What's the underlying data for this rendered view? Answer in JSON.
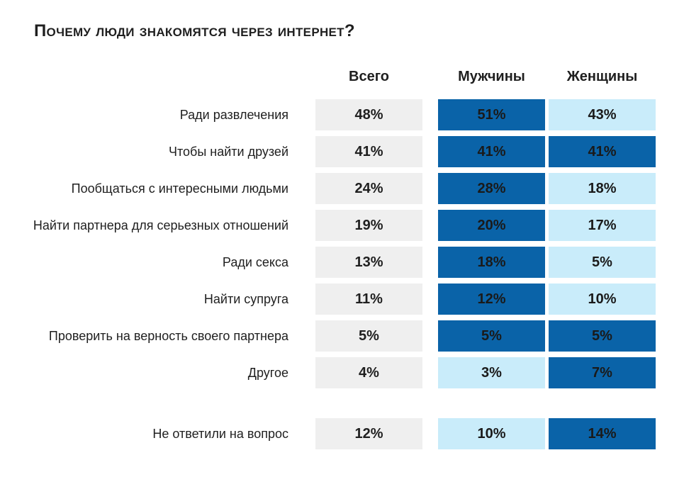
{
  "colors": {
    "total": "#efefef",
    "high": "#0a63a8",
    "low": "#c9ecfa"
  },
  "chart_data": {
    "type": "table",
    "title": "Почему люди знакомятся через интернет?",
    "columns": [
      "Всего",
      "Мужчины",
      "Женщины"
    ],
    "rows": [
      {
        "label": "Ради развлечения",
        "values": [
          "48%",
          "51%",
          "43%"
        ],
        "highlight": [
          "total",
          "high",
          "low"
        ]
      },
      {
        "label": "Чтобы найти друзей",
        "values": [
          "41%",
          "41%",
          "41%"
        ],
        "highlight": [
          "total",
          "high",
          "high"
        ]
      },
      {
        "label": "Пообщаться с интересными людьми",
        "values": [
          "24%",
          "28%",
          "18%"
        ],
        "highlight": [
          "total",
          "high",
          "low"
        ]
      },
      {
        "label": "Найти партнера для серьезных отношений",
        "values": [
          "19%",
          "20%",
          "17%"
        ],
        "highlight": [
          "total",
          "high",
          "low"
        ]
      },
      {
        "label": "Ради секса",
        "values": [
          "13%",
          "18%",
          "5%"
        ],
        "highlight": [
          "total",
          "high",
          "low"
        ]
      },
      {
        "label": "Найти супруга",
        "values": [
          "11%",
          "12%",
          "10%"
        ],
        "highlight": [
          "total",
          "high",
          "low"
        ]
      },
      {
        "label": "Проверить на верность своего партнера",
        "values": [
          "5%",
          "5%",
          "5%"
        ],
        "highlight": [
          "total",
          "high",
          "high"
        ]
      },
      {
        "label": "Другое",
        "values": [
          "4%",
          "3%",
          "7%"
        ],
        "highlight": [
          "total",
          "low",
          "high"
        ]
      },
      {
        "label": "Не ответили на вопрос",
        "values": [
          "12%",
          "10%",
          "14%"
        ],
        "highlight": [
          "total",
          "low",
          "high"
        ]
      }
    ]
  }
}
